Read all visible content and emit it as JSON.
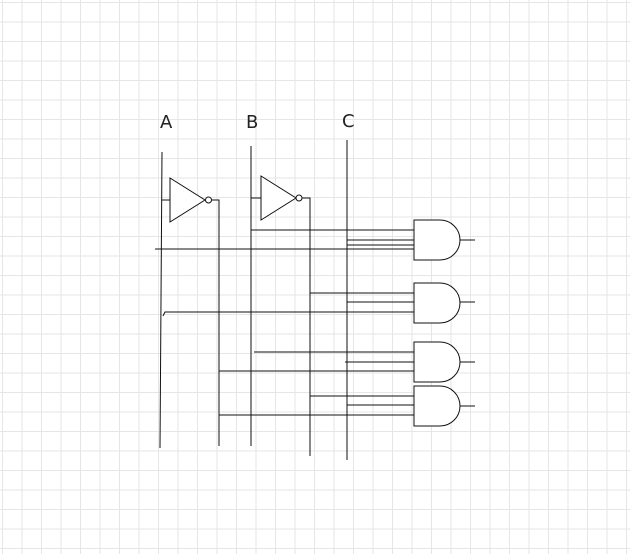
{
  "diagram": {
    "input_labels": [
      "A",
      "B",
      "C"
    ],
    "colors": {
      "line": "#111111",
      "grid": "#e6e6e6",
      "background": "#ffffff"
    },
    "components": {
      "not_gates": 2,
      "and_gates": 4,
      "and_gate_inputs": 3
    }
  }
}
